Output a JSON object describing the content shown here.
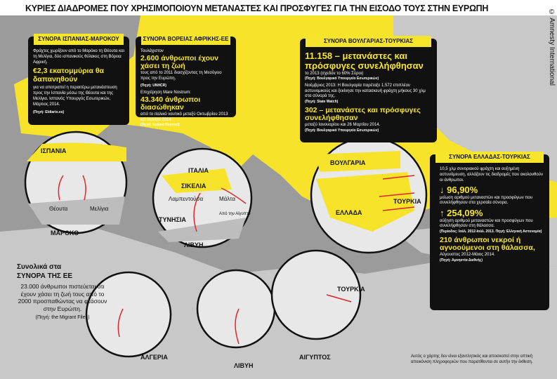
{
  "title": "ΚΥΡΙΕΣ ΔΙΑΔΡΟΜΕΣ ΠΟΥ ΧΡΗΣΙΜΟΠΟΙΟΥΝ ΜΕΤΑΝΑΣΤΕΣ ΚΑΙ ΠΡΟΣΦΥΓΕΣ ΓΙΑ ΤΗΝ ΕΙΣΟΔΟ ΤΟΥΣ ΣΤΗΝ ΕΥΡΩΠΗ",
  "credit": "© Amnesty International",
  "boxes": [
    {
      "title": "ΣΥΝΟΡΑ ΙΣΠΑΝΙΑΣ-ΜΑΡΟΚΟΥ",
      "lines": [
        "Φράχτες χωρίζουν από το Μαρόκο τη Θέουτα και τη Μελίγια, δύο ισπανικούς θύλακες στη Βόρεια Αφρική.",
        "€2,3 εκατομμύρια θα δαπανηθούν",
        "για να αποτραπεί η περαιτέρω μετανάστευση προς την Ισπανία μέσω της Θέουτα και της Μελίγια. Ισπανός Υπουργός Εσωτερικών, Μάρτιος 2014.",
        "(Πηγή: Eldiario.es)"
      ]
    },
    {
      "title": "ΣΥΝΟΡΑ ΒΟΡΕΙΑΣ ΑΦΡΙΚΗΣ-ΕΕ",
      "lines": [
        "Τουλάχιστον",
        "2.600 άνθρωποι έχουν χάσει τη ζωή",
        "τους από το 2011 διασχίζοντας τη Μεσόγειο προς την Ευρώπη.",
        "(Πηγή: UNHCR)",
        "Επιχείρηση Mare Nostrum:",
        "43.340 άνθρωποι διασώθηκαν",
        "από το ιταλικό ναυτικό μεταξύ Οκτωβρίου 2013 και Ιουνίου 2014",
        "(Πηγή: Ιταλικό Ναυτικό)"
      ]
    },
    {
      "title": "ΣΥΝΟΡΑ ΒΟΥΛΓΑΡΙΑΣ-ΤΟΥΡΚΙΑΣ",
      "lines": [
        "11.158 – μετανάστες και πρόσφυγες συνελήφθησαν",
        "το 2013 (σχεδόν το 60% Σύροι)",
        "(Πηγή: Βουλγαρικό Υπουργείο Εσωτερικών)",
        "Νοέμβριος 2013: Η Βουλγαρία παρέταξε 1.572 επιπλέον αστυνομικούς και ξεκίνησε την κατασκευή φράχτη μήκους 30 χλμ στα σύνορά της.",
        "(Πηγή: State Watch)",
        "302 – μετανάστες και πρόσφυγες συνελήφθησαν",
        "μεταξύ Ιανουαρίου και 26 Μαρτίου 2014.",
        "(Πηγή: Βουλγαρικό Υπουργείο Εσωτερικών)"
      ]
    },
    {
      "title": "ΣΥΝΟΡΑ ΕΛΛΑΔΑΣ-ΤΟΥΡΚΙΑΣ",
      "lines": [
        "10,5 χλμ συνοριακού φράχτη και αυξημένη αστυνόμευση, αλλάζουν τις διαδρομές που ακολουθούν οι άνθρωποι.",
        "96,90%",
        "μείωση αριθμού μεταναστών και προσφύγων που συνελήφθησαν στα χερσαία σύνορα.",
        "254,09%",
        "αύξηση αριθμού μεταναστών και προσφύγων που συνελήφθησαν στη θάλασσα.",
        "(Περίοδος: Ιούλ. 2012-Ιούλ. 2013. Πηγή: Ελληνική Αστυνομία)",
        "210 άνθρωποι νεκροί ή αγνοούμενοι στη θάλασσα,",
        "Αύγουστος 2012-Μάιος 2014.",
        "(Πηγή: Αμνηστία Διεθνής)"
      ]
    }
  ],
  "summary": {
    "heading": "Συνολικά στα",
    "heading2": "ΣΥΝΟΡΑ ΤΗΣ ΕΕ",
    "body": "23.000 άνθρωποι πιστεύεται ότι έχουν χάσει τη ζωή τους από το 2000 προσπαθώντας να φτάσουν στην Ευρώπη.",
    "source": "(Πηγή: the Migrant Files)"
  },
  "labels": [
    "ΙΣΠΑΝΙΑ",
    "Θέουτα",
    "Μελίγια",
    "ΜΑΡΟΚΟ",
    "ΙΤΑΛΙΑ",
    "ΣΙΚΕΛΙΑ",
    "Λαμπεντούσα",
    "Μάλτα",
    "Από την Αίγυπτο",
    "ΤΥΝΗΣΙΑ",
    "ΛΙΒΥΗ",
    "ΒΟΥΛΓΑΡΙΑ",
    "ΤΟΥΡΚΙΑ",
    "ΕΛΛΑΔΑ",
    "ΑΛΓΕΡΙΑ",
    "ΛΙΒΥΗ",
    "ΑΙΓΥΠΤΟΣ",
    "ΤΟΥΡΚΙΑ"
  ],
  "footnote": "Αυτός ο χάρτης δεν είναι εξαντλητικός και αποσκοπεί στην οπτική απεικόνιση πληροφοριών που παρατίθενται σε αυτήν την έκθεση."
}
